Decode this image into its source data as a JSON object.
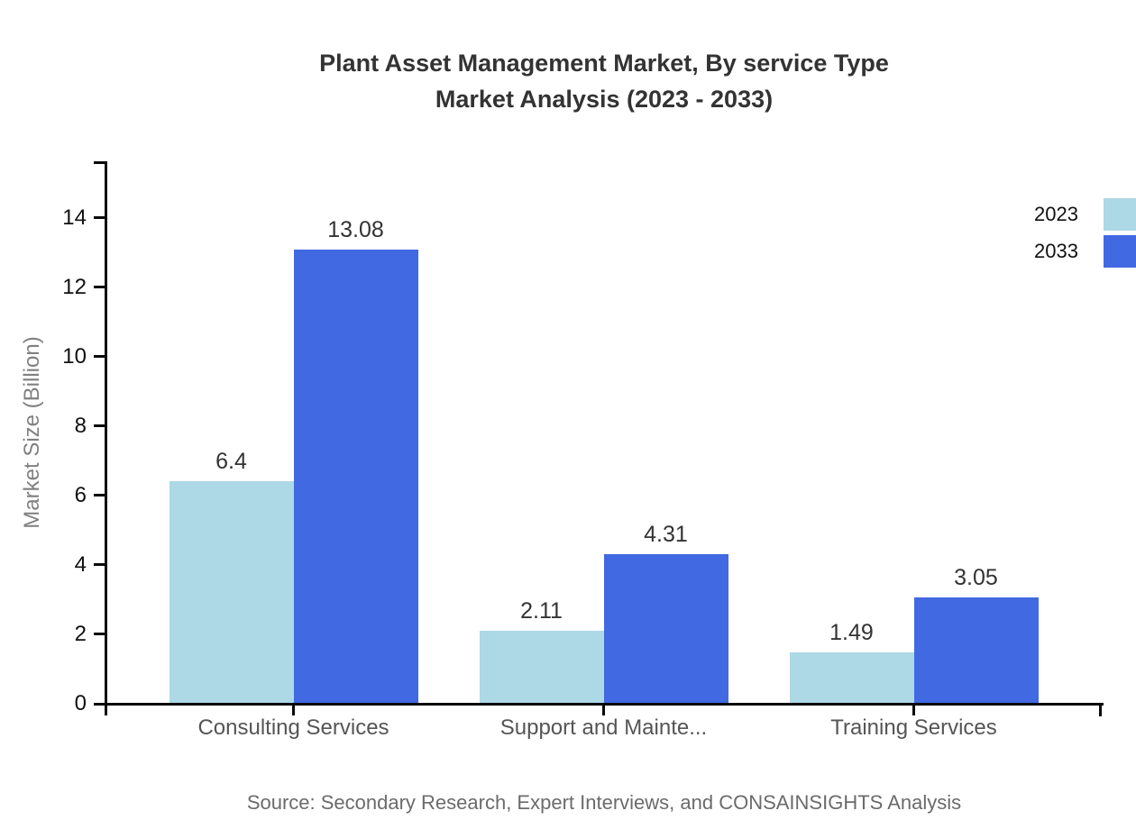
{
  "title": {
    "line1": "Plant Asset Management Market, By service Type",
    "line2": "Market Analysis (2023 - 2033)"
  },
  "chart_data": {
    "type": "bar",
    "title": "Plant Asset Management Market, By service Type Market Analysis (2023 - 2033)",
    "categories": [
      "Consulting Services",
      "Support and Mainte...",
      "Training Services"
    ],
    "series": [
      {
        "name": "2023",
        "color": "#ADD8E6",
        "values": [
          6.4,
          2.11,
          1.49
        ]
      },
      {
        "name": "2033",
        "color": "#4169E1",
        "values": [
          13.08,
          4.31,
          3.05
        ]
      }
    ],
    "xlabel": "",
    "ylabel": "Market Size (Billion)",
    "y_ticks": [
      0,
      2,
      4,
      6,
      8,
      10,
      12,
      14
    ],
    "ylim": [
      0,
      15.6
    ],
    "grid": false,
    "legend_position": "top-right",
    "value_labels": true
  },
  "colors": {
    "axis": "#0a0a0a",
    "series_2023": "#ADD8E6",
    "series_2033": "#4169E1",
    "title_text": "#333333",
    "category_text": "#555557",
    "source_text": "#6b6b6b"
  },
  "footer": {
    "source": "Source: Secondary Research, Expert Interviews, and CONSAINSIGHTS Analysis"
  }
}
